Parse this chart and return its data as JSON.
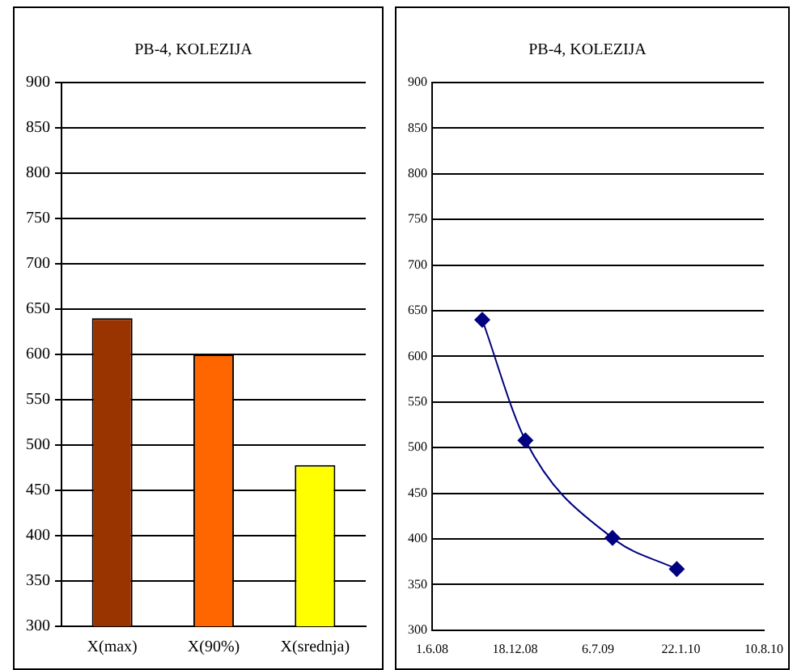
{
  "chart_data": [
    {
      "type": "bar",
      "title": "PB-4, KOLEZIJA",
      "categories": [
        "X(max)",
        "X(90%)",
        "X(srednja)"
      ],
      "values": [
        640,
        600,
        478
      ],
      "colors": [
        "#993300",
        "#ff6600",
        "#ffff00"
      ],
      "ylim": [
        300,
        900
      ],
      "yticks": [
        300,
        350,
        400,
        450,
        500,
        550,
        600,
        650,
        700,
        750,
        800,
        850,
        900
      ],
      "grid": "y"
    },
    {
      "type": "line",
      "title": "PB-4, KOLEZIJA",
      "x": [
        "2008-09-30",
        "2009-01-12",
        "2009-08-10",
        "2010-01-12"
      ],
      "series": [
        {
          "color": "#000080",
          "values": [
            640,
            508,
            401,
            367
          ]
        }
      ],
      "marker": "diamond",
      "line_style": "solid",
      "xlim": [
        "2008-06-01",
        "2010-08-10"
      ],
      "xticks": [
        {
          "value": "2008-06-01",
          "label": "1.6.08"
        },
        {
          "value": "2008-12-18",
          "label": "18.12.08"
        },
        {
          "value": "2009-07-06",
          "label": "6.7.09"
        },
        {
          "value": "2010-01-22",
          "label": "22.1.10"
        },
        {
          "value": "2010-08-10",
          "label": "10.8.10"
        }
      ],
      "ylim": [
        300,
        900
      ],
      "yticks": [
        300,
        350,
        400,
        450,
        500,
        550,
        600,
        650,
        700,
        750,
        800,
        850,
        900
      ],
      "grid": "y"
    }
  ]
}
